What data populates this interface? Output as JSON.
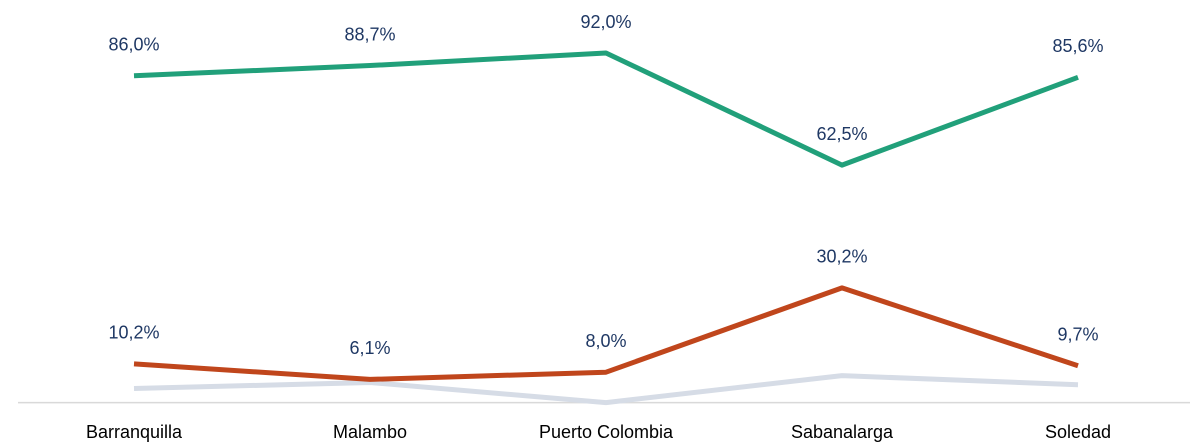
{
  "chart_data": {
    "type": "line",
    "categories": [
      "Barranquilla",
      "Malambo",
      "Puerto Colombia",
      "Sabanalarga",
      "Soledad"
    ],
    "series": [
      {
        "color": "#21a07a",
        "values": [
          86.0,
          88.7,
          92.0,
          62.5,
          85.6
        ],
        "value_labels": [
          "86,0%",
          "88,7%",
          "92,0%",
          "62,5%",
          "85,6%"
        ]
      },
      {
        "color": "#c0461c",
        "values": [
          10.2,
          6.1,
          8.0,
          30.2,
          9.7
        ],
        "value_labels": [
          "10,2%",
          "6,1%",
          "8,0%",
          "30,2%",
          "9,7%"
        ]
      },
      {
        "color": "#d6dce6",
        "values": [
          3.7,
          5.3,
          0.0,
          7.1,
          4.7
        ]
      }
    ],
    "ylim": [
      0,
      100
    ]
  }
}
